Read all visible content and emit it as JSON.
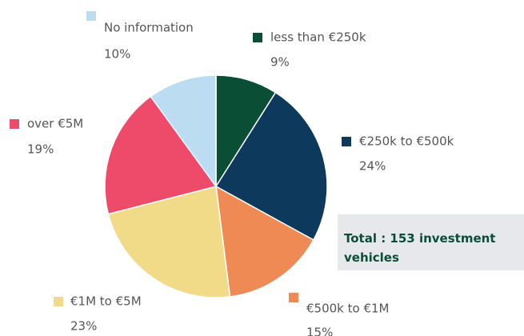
{
  "chart_data": {
    "type": "pie",
    "categories": [
      "less than €250k",
      "€250k to €500k",
      "€500k to €1M",
      "€1M to €5M",
      "over €5M",
      "No information"
    ],
    "values": [
      9,
      24,
      15,
      23,
      19,
      10
    ],
    "value_labels": [
      "9%",
      "24%",
      "15%",
      "23%",
      "19%",
      "10%"
    ],
    "colors": [
      "#0a4f35",
      "#0d3a5c",
      "#f08a55",
      "#f2db88",
      "#ee4a6a",
      "#bcdcf2"
    ],
    "annotation": "Total : 153 investment vehicles"
  }
}
